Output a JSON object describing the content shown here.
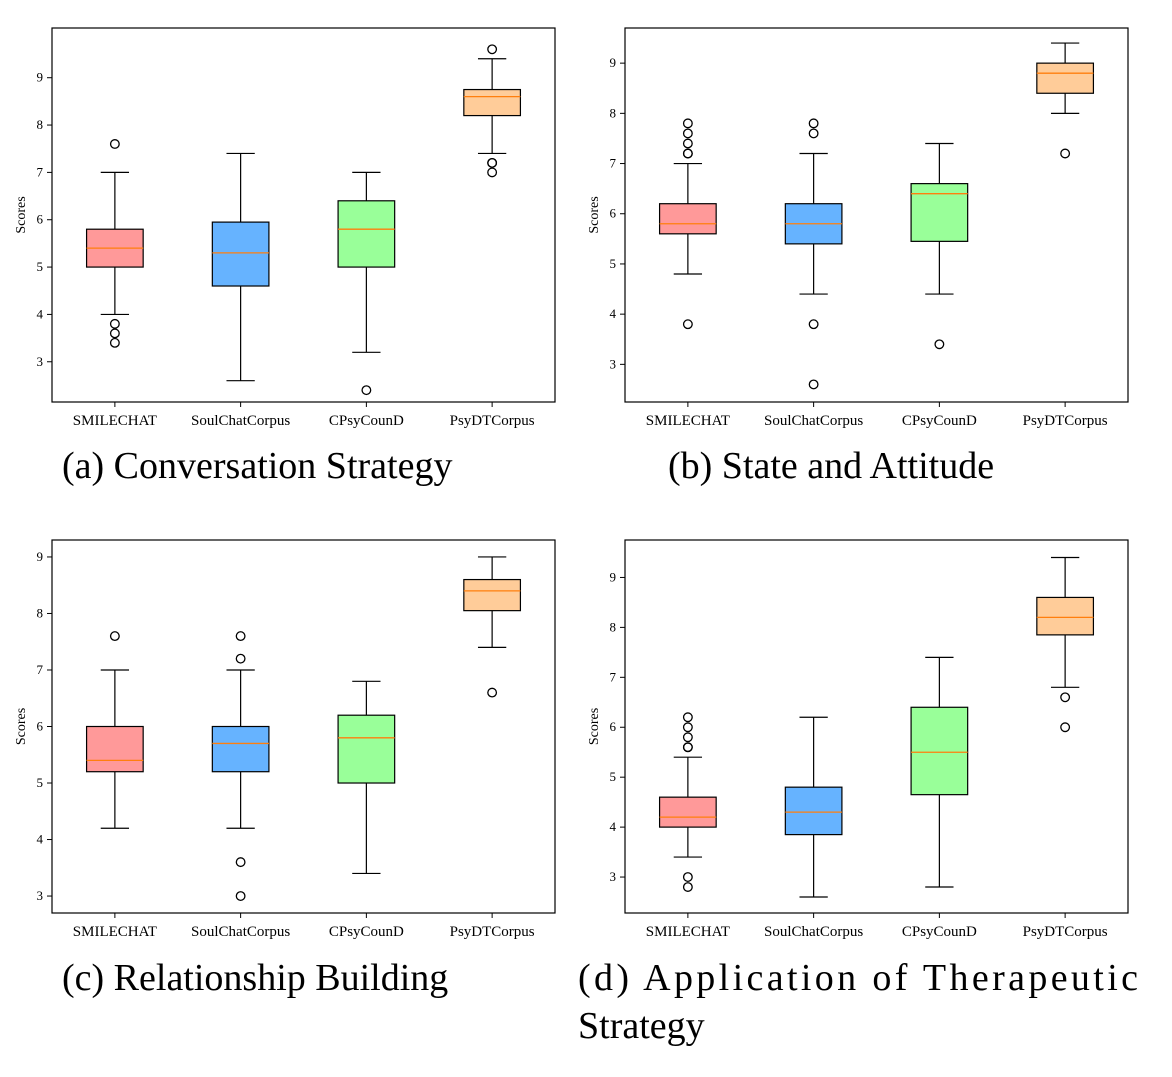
{
  "chart_data": [
    {
      "type": "boxplot",
      "caption": "(a) Conversation Strategy",
      "ylabel": "Scores",
      "categories": [
        "SMILECHAT",
        "SoulChatCorpus",
        "CPsyCounD",
        "PsyDTCorpus"
      ],
      "yticks": [
        3,
        4,
        5,
        6,
        7,
        8,
        9
      ],
      "ylim": [
        2.15,
        10.05
      ],
      "boxes": [
        {
          "q1": 5.0,
          "median": 5.4,
          "q3": 5.8,
          "whisker_low": 4.0,
          "whisker_high": 7.0,
          "outliers": [
            3.4,
            3.6,
            3.8,
            7.6
          ]
        },
        {
          "q1": 4.6,
          "median": 5.3,
          "q3": 5.95,
          "whisker_low": 2.6,
          "whisker_high": 7.4,
          "outliers": []
        },
        {
          "q1": 5.0,
          "median": 5.8,
          "q3": 6.4,
          "whisker_low": 3.2,
          "whisker_high": 7.0,
          "outliers": [
            2.4
          ]
        },
        {
          "q1": 8.2,
          "median": 8.6,
          "q3": 8.75,
          "whisker_low": 7.4,
          "whisker_high": 9.4,
          "outliers": [
            7.0,
            7.2,
            7.2,
            9.6
          ]
        }
      ]
    },
    {
      "type": "boxplot",
      "caption": "(b) State and Attitude",
      "ylabel": "Scores",
      "categories": [
        "SMILECHAT",
        "SoulChatCorpus",
        "CPsyCounD",
        "PsyDTCorpus"
      ],
      "yticks": [
        3,
        4,
        5,
        6,
        7,
        8,
        9
      ],
      "ylim": [
        2.25,
        9.7
      ],
      "boxes": [
        {
          "q1": 5.6,
          "median": 5.8,
          "q3": 6.2,
          "whisker_low": 4.8,
          "whisker_high": 7.0,
          "outliers": [
            3.8,
            7.2,
            7.2,
            7.4,
            7.6,
            7.8
          ]
        },
        {
          "q1": 5.4,
          "median": 5.8,
          "q3": 6.2,
          "whisker_low": 4.4,
          "whisker_high": 7.2,
          "outliers": [
            2.6,
            3.8,
            7.6,
            7.8
          ]
        },
        {
          "q1": 5.45,
          "median": 6.4,
          "q3": 6.6,
          "whisker_low": 4.4,
          "whisker_high": 7.4,
          "outliers": [
            3.4
          ]
        },
        {
          "q1": 8.4,
          "median": 8.8,
          "q3": 9.0,
          "whisker_low": 8.0,
          "whisker_high": 9.4,
          "outliers": [
            7.2
          ]
        }
      ]
    },
    {
      "type": "boxplot",
      "caption": "(c) Relationship Building",
      "ylabel": "Scores",
      "categories": [
        "SMILECHAT",
        "SoulChatCorpus",
        "CPsyCounD",
        "PsyDTCorpus"
      ],
      "yticks": [
        3,
        4,
        5,
        6,
        7,
        8,
        9
      ],
      "ylim": [
        2.7,
        9.3
      ],
      "boxes": [
        {
          "q1": 5.2,
          "median": 5.4,
          "q3": 6.0,
          "whisker_low": 4.2,
          "whisker_high": 7.0,
          "outliers": [
            7.6
          ]
        },
        {
          "q1": 5.2,
          "median": 5.7,
          "q3": 6.0,
          "whisker_low": 4.2,
          "whisker_high": 7.0,
          "outliers": [
            3.0,
            3.6,
            7.2,
            7.6
          ]
        },
        {
          "q1": 5.0,
          "median": 5.8,
          "q3": 6.2,
          "whisker_low": 3.4,
          "whisker_high": 6.8,
          "outliers": []
        },
        {
          "q1": 8.05,
          "median": 8.4,
          "q3": 8.6,
          "whisker_low": 7.4,
          "whisker_high": 9.0,
          "outliers": [
            6.6
          ]
        }
      ]
    },
    {
      "type": "boxplot",
      "caption": "(d) Application of Therapeutic Strategy",
      "ylabel": "Scores",
      "categories": [
        "SMILECHAT",
        "SoulChatCorpus",
        "CPsyCounD",
        "PsyDTCorpus"
      ],
      "yticks": [
        3,
        4,
        5,
        6,
        7,
        8,
        9
      ],
      "ylim": [
        2.28,
        9.75
      ],
      "boxes": [
        {
          "q1": 4.0,
          "median": 4.2,
          "q3": 4.6,
          "whisker_low": 3.4,
          "whisker_high": 5.4,
          "outliers": [
            2.8,
            3.0,
            5.6,
            5.6,
            5.8,
            6.0,
            6.2
          ]
        },
        {
          "q1": 3.85,
          "median": 4.3,
          "q3": 4.8,
          "whisker_low": 2.6,
          "whisker_high": 6.2,
          "outliers": []
        },
        {
          "q1": 4.65,
          "median": 5.5,
          "q3": 6.4,
          "whisker_low": 2.8,
          "whisker_high": 7.4,
          "outliers": []
        },
        {
          "q1": 7.85,
          "median": 8.2,
          "q3": 8.6,
          "whisker_low": 6.8,
          "whisker_high": 9.4,
          "outliers": [
            6.0,
            6.6
          ]
        }
      ]
    }
  ],
  "colors": {
    "box_fills": [
      "#ff9999",
      "#66b3ff",
      "#99ff99",
      "#ffcc99"
    ],
    "median": "#ff7f0e",
    "stroke": "#000000"
  }
}
